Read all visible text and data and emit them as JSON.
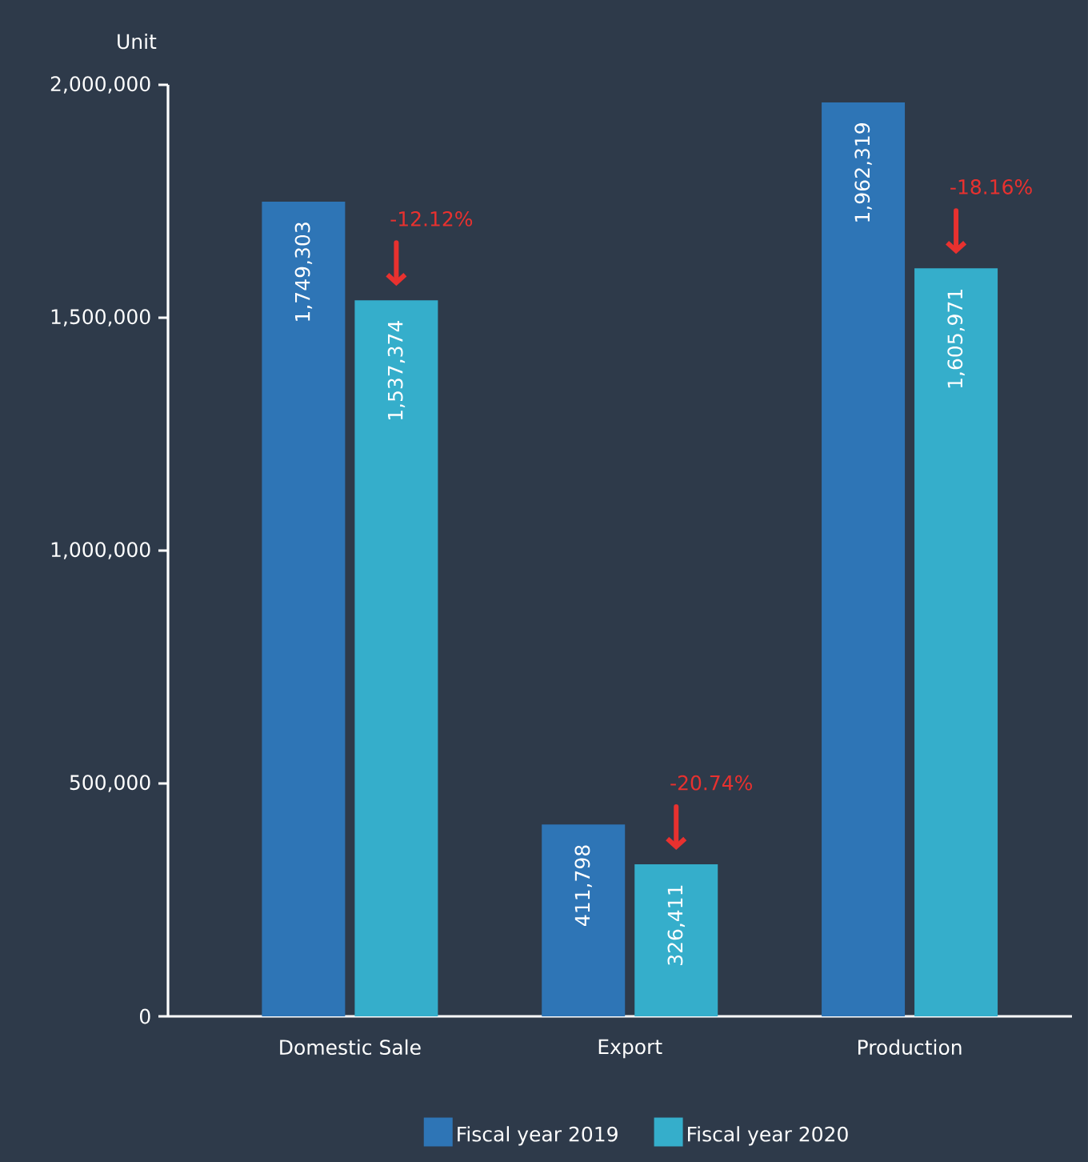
{
  "chart_data": {
    "type": "bar",
    "ylabel": "Unit",
    "categories": [
      "Domestic Sale",
      "Export",
      "Production"
    ],
    "series": [
      {
        "name": "Fiscal year 2019",
        "color": "#2e75b6",
        "values": [
          1749303,
          411798,
          1962319
        ],
        "value_labels": [
          "1,749,303",
          "411,798",
          "1,962,319"
        ]
      },
      {
        "name": "Fiscal year 2020",
        "color": "#35aecb",
        "values": [
          1537374,
          326411,
          1605971
        ],
        "value_labels": [
          "1,537,374",
          "326,411",
          "1,605,971"
        ]
      }
    ],
    "ylim": [
      0,
      2000000
    ],
    "yticks": [
      {
        "value": 0,
        "label": "0"
      },
      {
        "value": 500000,
        "label": "500,000"
      },
      {
        "value": 1000000,
        "label": "1,000,000"
      },
      {
        "value": 1500000,
        "label": "1,500,000"
      },
      {
        "value": 2000000,
        "label": "2,000,000"
      }
    ],
    "annotations": [
      "-12.12%",
      "-20.74%",
      "-18.16%"
    ],
    "grid": false,
    "legend": "bottom"
  }
}
